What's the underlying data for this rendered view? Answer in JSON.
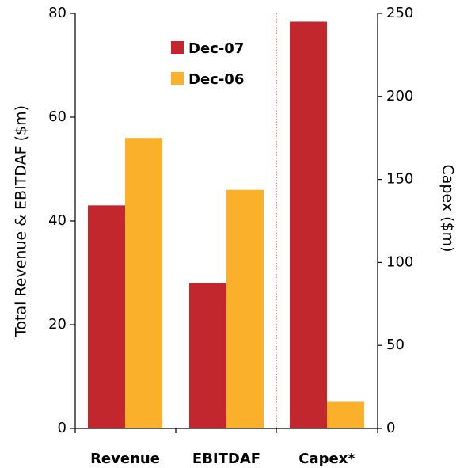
{
  "chart_data": {
    "type": "bar",
    "categories": [
      "Revenue",
      "EBITDAF",
      "Capex*"
    ],
    "series": [
      {
        "name": "Dec-07",
        "color": "#c1272d",
        "values": [
          43,
          28,
          245
        ]
      },
      {
        "name": "Dec-06",
        "color": "#fbb02b",
        "values": [
          56,
          46,
          16
        ]
      }
    ],
    "left_axis": {
      "label": "Total Revenue & EBITDAF ($m)",
      "ylim": [
        0,
        80
      ],
      "ticks": [
        "0",
        "20",
        "40",
        "60",
        "80"
      ],
      "categories_plotted": [
        "Revenue",
        "EBITDAF"
      ]
    },
    "right_axis": {
      "label": "Capex ($m)",
      "ylim": [
        0,
        250
      ],
      "ticks": [
        "0",
        "50",
        "100",
        "150",
        "200",
        "250"
      ],
      "categories_plotted": [
        "Capex*"
      ]
    },
    "separator": {
      "style": "dotted",
      "color": "#c1272d",
      "between": [
        "EBITDAF",
        "Capex*"
      ]
    },
    "legend": {
      "position": "top-center"
    },
    "grid": false
  }
}
